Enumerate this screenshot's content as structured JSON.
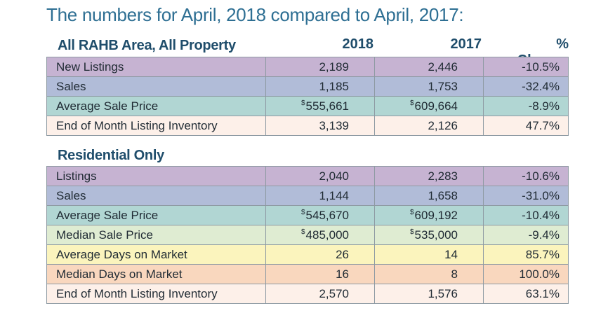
{
  "title": "The numbers for April, 2018 compared to April, 2017:",
  "columns": {
    "y2018": "2018",
    "y2017": "2017",
    "change": "% Change"
  },
  "sections": [
    {
      "heading": "All RAHB Area, All Property",
      "show_columns": true,
      "rows": [
        {
          "label": "New Listings",
          "v2018": "2,189",
          "v2017": "2,446",
          "change": "-10.5%",
          "cur": false,
          "color": "#c6b3d2"
        },
        {
          "label": "Sales",
          "v2018": "1,185",
          "v2017": "1,753",
          "change": "-32.4%",
          "cur": false,
          "color": "#b1bcd8"
        },
        {
          "label": "Average Sale Price",
          "v2018": "555,661",
          "v2017": "609,664",
          "change": "-8.9%",
          "cur": true,
          "currency": "$",
          "color": "#b1d6d3"
        },
        {
          "label": "End of Month Listing Inventory",
          "v2018": "3,139",
          "v2017": "2,126",
          "change": "47.7%",
          "cur": false,
          "color": "#fdf0e9"
        }
      ]
    },
    {
      "heading": "Residential Only",
      "show_columns": false,
      "rows": [
        {
          "label": "Listings",
          "v2018": "2,040",
          "v2017": "2,283",
          "change": "-10.6%",
          "cur": false,
          "color": "#c6b3d2"
        },
        {
          "label": "Sales",
          "v2018": "1,144",
          "v2017": "1,658",
          "change": "-31.0%",
          "cur": false,
          "color": "#b1bcd8"
        },
        {
          "label": "Average Sale Price",
          "v2018": "545,670",
          "v2017": "609,192",
          "change": "-10.4%",
          "cur": true,
          "currency": "$",
          "color": "#b1d6d3"
        },
        {
          "label": "Median Sale Price",
          "v2018": "485,000",
          "v2017": "535,000",
          "change": "-9.4%",
          "cur": true,
          "currency": "$",
          "color": "#dfecd2"
        },
        {
          "label": "Average Days on Market",
          "v2018": "26",
          "v2017": "14",
          "change": "85.7%",
          "cur": false,
          "color": "#fbf4bd"
        },
        {
          "label": "Median Days on Market",
          "v2018": "16",
          "v2017": "8",
          "change": "100.0%",
          "cur": false,
          "color": "#f9d7be"
        },
        {
          "label": "End of Month Listing Inventory",
          "v2018": "2,570",
          "v2017": "1,576",
          "change": "63.1%",
          "cur": false,
          "color": "#fdf0e9"
        }
      ]
    }
  ]
}
